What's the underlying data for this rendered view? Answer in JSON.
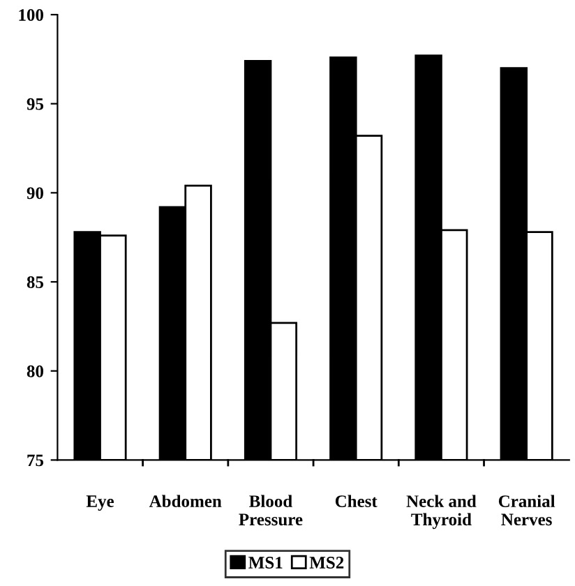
{
  "chart_data": {
    "type": "bar",
    "categories": [
      "Eye",
      "Abdomen",
      "Blood\nPressure",
      "Chest",
      "Neck and\nThyroid",
      "Cranial\nNerves"
    ],
    "series": [
      {
        "name": "MS1",
        "color": "#000000",
        "values": [
          87.8,
          89.2,
          97.4,
          97.6,
          97.7,
          97.0
        ]
      },
      {
        "name": "MS2",
        "color": "#ffffff",
        "values": [
          87.6,
          90.4,
          82.7,
          93.2,
          87.9,
          87.8
        ]
      }
    ],
    "ylim": [
      75,
      100
    ],
    "yticks": [
      75,
      80,
      85,
      90,
      95,
      100
    ],
    "grid": false,
    "legend": "bottom"
  }
}
